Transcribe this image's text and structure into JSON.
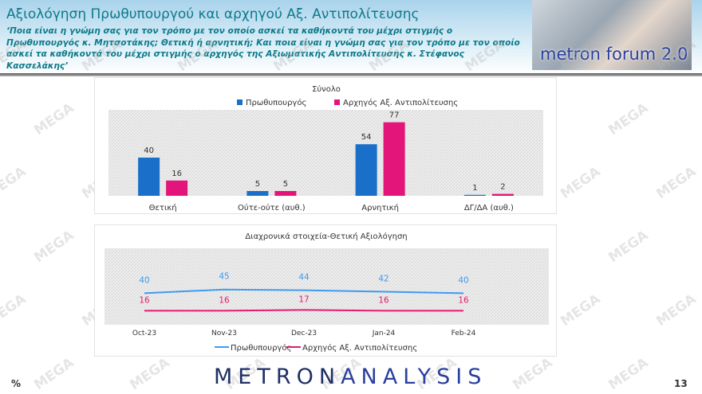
{
  "header": {
    "title": "Αξιολόγηση Πρωθυπουργού και αρχηγού Αξ. Αντιπολίτευσης",
    "question": "‘Ποια είναι η γνώμη σας για τον τρόπο με τον οποίο ασκεί τα καθήκοντά του μέχρι στιγμής ο Πρωθυπουργός κ. Μητσοτάκης; Θετική ή αρνητική; Και ποια είναι η γνώμη σας για τον τρόπο με τον οποίο ασκεί τα καθήκοντά του μέχρι στιγμής ο αρχηγός της Αξιωματικής Αντιπολίτευσης κ. Στέφανος Κασσελάκης’",
    "logo_text": "metron forum 2.0"
  },
  "watermark": "MEGA",
  "footer": {
    "brand_a": "METRON",
    "brand_b": "ANALYSIS",
    "unit": "%",
    "page": "13"
  },
  "colors": {
    "pm": "#1a6fc9",
    "opp": "#e3157a",
    "pm_line": "#3d9bf0",
    "opp_line": "#e8196f"
  },
  "chart_data": [
    {
      "type": "bar",
      "title": "Σύνολο",
      "categories": [
        "Θετική",
        "Ούτε-ούτε (αυθ.)",
        "Αρνητική",
        "ΔΓ/ΔΑ (αυθ.)"
      ],
      "series": [
        {
          "name": "Πρωθυπουργός",
          "values": [
            40,
            5,
            54,
            1
          ]
        },
        {
          "name": "Αρχηγός Αξ. Αντιπολίτευσης",
          "values": [
            16,
            5,
            77,
            2
          ]
        }
      ],
      "ylim": [
        0,
        90
      ],
      "legend": "top",
      "grid": false
    },
    {
      "type": "line",
      "title": "Διαχρονικά στοιχεία-Θετική Αξιολόγηση",
      "categories": [
        "Oct-23",
        "Nov-23",
        "Dec-23",
        "Jan-24",
        "Feb-24"
      ],
      "series": [
        {
          "name": "Πρωθυπουργός",
          "values": [
            40,
            45,
            44,
            42,
            40
          ]
        },
        {
          "name": "Αρχηγός Αξ. Αντιπολίτευσης",
          "values": [
            16,
            16,
            17,
            16,
            16
          ]
        }
      ],
      "ylim": [
        0,
        100
      ],
      "legend": "bottom",
      "grid": false
    }
  ]
}
